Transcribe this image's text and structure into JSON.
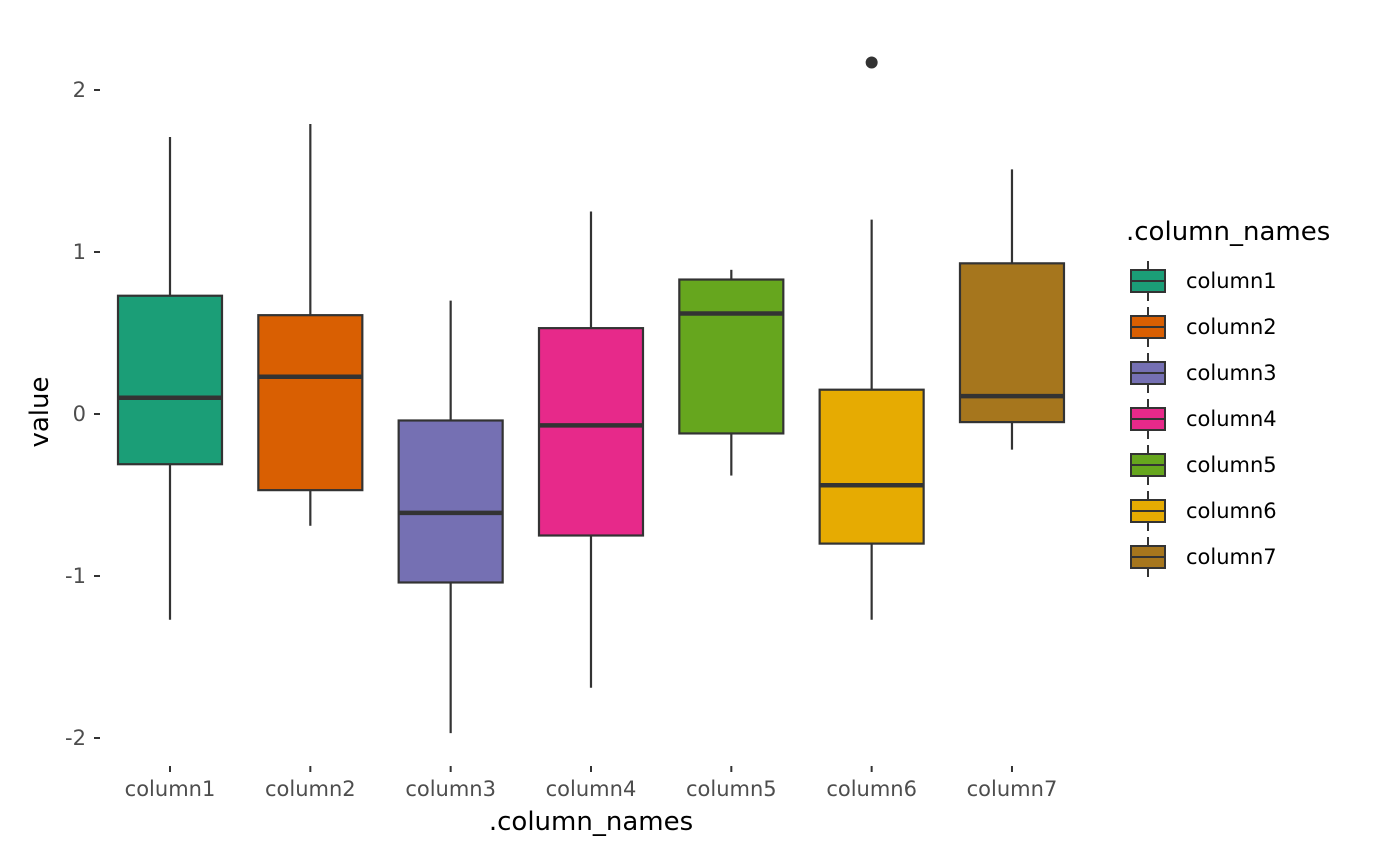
{
  "chart_data": {
    "type": "boxplot",
    "xlabel": ".column_names",
    "ylabel": "value",
    "categories": [
      "column1",
      "column2",
      "column3",
      "column4",
      "column5",
      "column6",
      "column7"
    ],
    "ylim": [
      -2.15,
      2.35
    ],
    "yticks": [
      -2,
      -1,
      0,
      1,
      2
    ],
    "ytick_labels": [
      "-2",
      "-1",
      "0",
      "1",
      "2"
    ],
    "grid": false,
    "legend": {
      "title": ".column_names",
      "position": "right",
      "entries": [
        "column1",
        "column2",
        "column3",
        "column4",
        "column5",
        "column6",
        "column7"
      ]
    },
    "boxes": [
      {
        "name": "column1",
        "whisker_low": -1.27,
        "q1": -0.31,
        "median": 0.1,
        "q3": 0.73,
        "whisker_high": 1.71,
        "outliers": [],
        "color": "#1b9e77"
      },
      {
        "name": "column2",
        "whisker_low": -0.69,
        "q1": -0.47,
        "median": 0.23,
        "q3": 0.61,
        "whisker_high": 1.79,
        "outliers": [],
        "color": "#d95f02"
      },
      {
        "name": "column3",
        "whisker_low": -1.97,
        "q1": -1.04,
        "median": -0.61,
        "q3": -0.04,
        "whisker_high": 0.7,
        "outliers": [],
        "color": "#7570b3"
      },
      {
        "name": "column4",
        "whisker_low": -1.69,
        "q1": -0.75,
        "median": -0.07,
        "q3": 0.53,
        "whisker_high": 1.25,
        "outliers": [],
        "color": "#e7298a"
      },
      {
        "name": "column5",
        "whisker_low": -0.38,
        "q1": -0.12,
        "median": 0.62,
        "q3": 0.83,
        "whisker_high": 0.89,
        "outliers": [],
        "color": "#66a61e"
      },
      {
        "name": "column6",
        "whisker_low": -1.27,
        "q1": -0.8,
        "median": -0.44,
        "q3": 0.15,
        "whisker_high": 1.2,
        "outliers": [
          2.17
        ],
        "color": "#e6ab02"
      },
      {
        "name": "column7",
        "whisker_low": -0.22,
        "q1": -0.05,
        "median": 0.11,
        "q3": 0.93,
        "whisker_high": 1.51,
        "outliers": [],
        "color": "#a6761d"
      }
    ]
  }
}
